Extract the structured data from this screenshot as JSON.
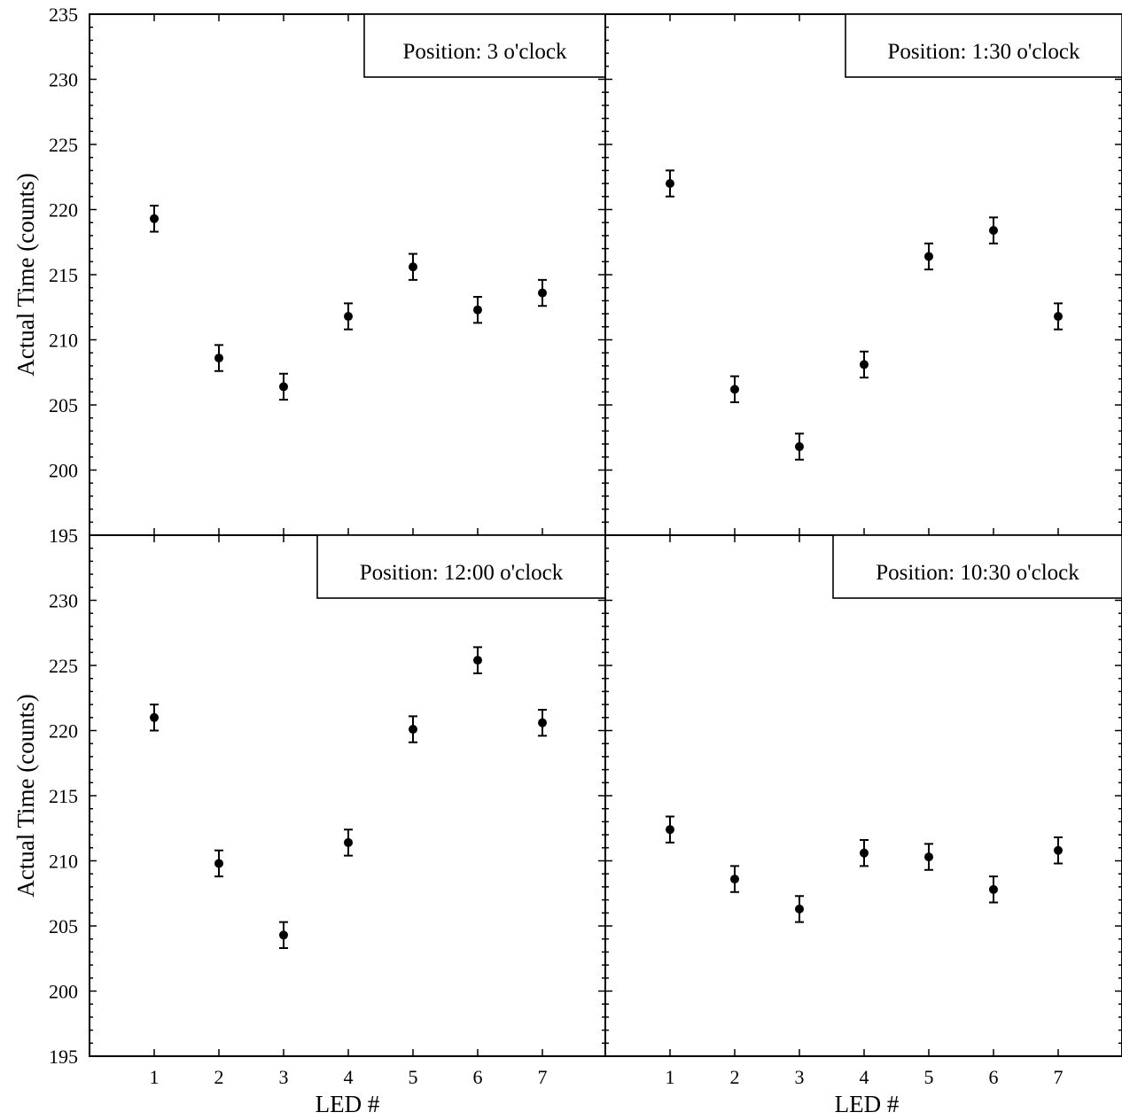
{
  "chart_data": [
    {
      "type": "scatter",
      "panel": "top-left",
      "annotation": "Position: 3 o'clock",
      "xlabel": "",
      "ylabel": "Actual Time (counts)",
      "x": [
        1,
        2,
        3,
        4,
        5,
        6,
        7
      ],
      "y": [
        219.3,
        208.6,
        206.4,
        211.8,
        215.6,
        212.3,
        213.6
      ],
      "error": 1.0,
      "xlim": [
        0,
        8
      ],
      "ylim": [
        195,
        235
      ],
      "yticks": [
        195,
        200,
        205,
        210,
        215,
        220,
        225,
        230,
        235
      ]
    },
    {
      "type": "scatter",
      "panel": "top-right",
      "annotation": "Position: 1:30 o'clock",
      "xlabel": "",
      "ylabel": "",
      "x": [
        1,
        2,
        3,
        4,
        5,
        6,
        7
      ],
      "y": [
        222.0,
        206.2,
        201.8,
        208.1,
        216.4,
        218.4,
        211.8
      ],
      "error": 1.0,
      "xlim": [
        0,
        8
      ],
      "ylim": [
        195,
        235
      ]
    },
    {
      "type": "scatter",
      "panel": "bottom-left",
      "annotation": "Position: 12:00 o'clock",
      "xlabel": "LED #",
      "ylabel": "Actual Time (counts)",
      "x": [
        1,
        2,
        3,
        4,
        5,
        6,
        7
      ],
      "y": [
        221.0,
        209.8,
        204.3,
        211.4,
        220.1,
        225.4,
        220.6
      ],
      "error": 1.0,
      "xlim": [
        0,
        8
      ],
      "ylim": [
        195,
        235
      ],
      "yticks": [
        195,
        200,
        205,
        210,
        215,
        220,
        225,
        230
      ],
      "xticks": [
        "1",
        "2",
        "3",
        "4",
        "5",
        "6",
        "7"
      ]
    },
    {
      "type": "scatter",
      "panel": "bottom-right",
      "annotation": "Position: 10:30 o'clock",
      "xlabel": "LED #",
      "ylabel": "",
      "x": [
        1,
        2,
        3,
        4,
        5,
        6,
        7
      ],
      "y": [
        212.4,
        208.6,
        206.3,
        210.6,
        210.3,
        207.8,
        210.8
      ],
      "error": 1.0,
      "xlim": [
        0,
        8
      ],
      "ylim": [
        195,
        235
      ],
      "xticks": [
        "1",
        "2",
        "3",
        "4",
        "5",
        "6",
        "7"
      ]
    }
  ]
}
